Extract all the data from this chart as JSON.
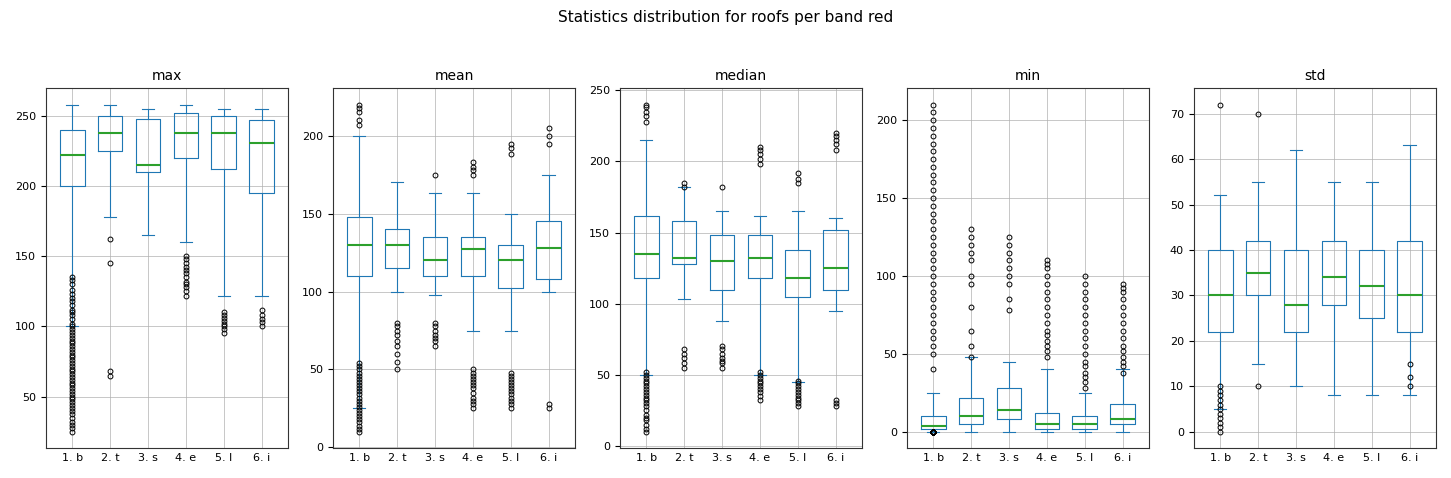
{
  "title": "Statistics distribution for roofs per band red",
  "subplots": [
    "max",
    "mean",
    "median",
    "min",
    "std"
  ],
  "categories": [
    "1. b",
    "2. t",
    "3. s",
    "4. e",
    "5. l",
    "6. i"
  ],
  "box_color": "#1f77b4",
  "median_color": "#2ca02c",
  "flier_color": "black",
  "stats": {
    "max": {
      "q1": [
        200,
        225,
        210,
        220,
        212,
        195
      ],
      "median": [
        222,
        238,
        215,
        238,
        238,
        231
      ],
      "q3": [
        240,
        250,
        248,
        252,
        250,
        247
      ],
      "whislo": [
        100,
        178,
        165,
        160,
        122,
        122
      ],
      "whishi": [
        258,
        258,
        255,
        258,
        255,
        255
      ],
      "fliers": [
        [
          25,
          28,
          30,
          32,
          35,
          38,
          40,
          42,
          44,
          46,
          48,
          50,
          52,
          54,
          56,
          58,
          60,
          62,
          64,
          66,
          68,
          70,
          72,
          74,
          76,
          78,
          80,
          82,
          84,
          86,
          88,
          90,
          92,
          94,
          96,
          98,
          100,
          102,
          105,
          108,
          110,
          112,
          115,
          118,
          120,
          123,
          126,
          130,
          133,
          135
        ],
        [
          65,
          68,
          145,
          162
        ],
        [],
        [
          122,
          125,
          128,
          130,
          132,
          135,
          138,
          140,
          142,
          145,
          148,
          150
        ],
        [
          95,
          98,
          100,
          102,
          104,
          106,
          108,
          110
        ],
        [
          100,
          103,
          105,
          108,
          112
        ]
      ]
    },
    "mean": {
      "q1": [
        110,
        115,
        110,
        110,
        102,
        108
      ],
      "median": [
        130,
        130,
        120,
        127,
        120,
        128
      ],
      "q3": [
        148,
        140,
        135,
        135,
        130,
        145
      ],
      "whislo": [
        25,
        100,
        98,
        75,
        75,
        100
      ],
      "whishi": [
        200,
        170,
        163,
        163,
        150,
        175
      ],
      "fliers": [
        [
          10,
          12,
          14,
          16,
          18,
          20,
          22,
          24,
          26,
          28,
          30,
          32,
          34,
          36,
          38,
          40,
          42,
          44,
          46,
          48,
          50,
          52,
          54,
          207,
          210,
          215,
          218,
          220
        ],
        [
          50,
          55,
          60,
          65,
          68,
          72,
          75,
          78,
          80
        ],
        [
          65,
          68,
          70,
          72,
          75,
          78,
          80,
          175
        ],
        [
          25,
          28,
          30,
          32,
          35,
          38,
          40,
          42,
          44,
          46,
          48,
          50,
          175,
          178,
          180,
          183
        ],
        [
          25,
          28,
          30,
          32,
          34,
          36,
          38,
          40,
          42,
          44,
          46,
          48,
          188,
          192,
          195
        ],
        [
          25,
          28,
          195,
          200,
          205
        ]
      ]
    },
    "median": {
      "q1": [
        118,
        128,
        110,
        118,
        105,
        110
      ],
      "median": [
        135,
        132,
        130,
        132,
        118,
        125
      ],
      "q3": [
        162,
        158,
        148,
        148,
        138,
        152
      ],
      "whislo": [
        50,
        103,
        88,
        50,
        45,
        95
      ],
      "whishi": [
        215,
        182,
        165,
        162,
        165,
        160
      ],
      "fliers": [
        [
          10,
          12,
          15,
          18,
          20,
          22,
          25,
          28,
          30,
          32,
          34,
          36,
          38,
          40,
          42,
          44,
          46,
          48,
          50,
          52,
          228,
          232,
          235,
          238,
          240
        ],
        [
          55,
          58,
          62,
          65,
          68,
          182,
          185
        ],
        [
          55,
          58,
          60,
          62,
          65,
          68,
          70,
          182
        ],
        [
          32,
          35,
          38,
          40,
          42,
          44,
          46,
          48,
          50,
          52,
          198,
          202,
          205,
          208,
          210
        ],
        [
          28,
          30,
          32,
          34,
          36,
          38,
          40,
          42,
          44,
          46,
          185,
          188,
          192
        ],
        [
          28,
          30,
          32,
          208,
          212,
          215,
          218,
          220
        ]
      ]
    },
    "min": {
      "q1": [
        2,
        5,
        8,
        2,
        2,
        5
      ],
      "median": [
        4,
        10,
        14,
        5,
        5,
        8
      ],
      "q3": [
        10,
        22,
        28,
        12,
        10,
        18
      ],
      "whislo": [
        0,
        0,
        0,
        0,
        0,
        0
      ],
      "whishi": [
        25,
        48,
        45,
        40,
        25,
        40
      ],
      "fliers": [
        [
          0,
          0,
          0,
          0,
          0,
          0,
          0,
          0,
          0,
          0,
          0,
          0,
          0,
          0,
          0,
          0,
          0,
          0,
          0,
          0,
          0,
          0,
          0,
          0,
          0,
          0,
          0,
          0,
          0,
          0,
          0,
          0,
          0,
          0,
          0,
          0,
          0,
          0,
          0,
          0,
          0,
          0,
          0,
          0,
          0,
          0,
          0,
          0,
          0,
          0,
          40,
          50,
          55,
          60,
          65,
          70,
          75,
          80,
          85,
          90,
          95,
          100,
          105,
          110,
          115,
          120,
          125,
          130,
          135,
          140,
          145,
          150,
          155,
          160,
          165,
          170,
          175,
          180,
          185,
          190,
          195,
          200,
          205,
          210
        ],
        [
          48,
          55,
          65,
          80,
          95,
          100,
          110,
          115,
          120,
          125,
          130
        ],
        [
          78,
          85,
          95,
          100,
          105,
          110,
          115,
          120,
          125
        ],
        [
          48,
          52,
          55,
          58,
          62,
          65,
          70,
          75,
          80,
          85,
          90,
          95,
          100,
          105,
          108,
          110
        ],
        [
          28,
          32,
          35,
          38,
          42,
          45,
          50,
          55,
          60,
          65,
          70,
          75,
          80,
          85,
          90,
          95,
          100
        ],
        [
          38,
          42,
          45,
          48,
          52,
          55,
          60,
          65,
          70,
          75,
          80,
          85,
          90,
          92,
          95
        ]
      ]
    },
    "std": {
      "q1": [
        22,
        30,
        22,
        28,
        25,
        22
      ],
      "median": [
        30,
        35,
        28,
        34,
        32,
        30
      ],
      "q3": [
        40,
        42,
        40,
        42,
        40,
        42
      ],
      "whislo": [
        5,
        15,
        10,
        8,
        8,
        8
      ],
      "whishi": [
        52,
        55,
        62,
        55,
        55,
        63
      ],
      "fliers": [
        [
          0,
          1,
          2,
          3,
          4,
          5,
          6,
          7,
          8,
          9,
          10,
          72
        ],
        [
          10,
          70
        ],
        [],
        [],
        [],
        [
          10,
          12,
          15
        ]
      ]
    }
  }
}
